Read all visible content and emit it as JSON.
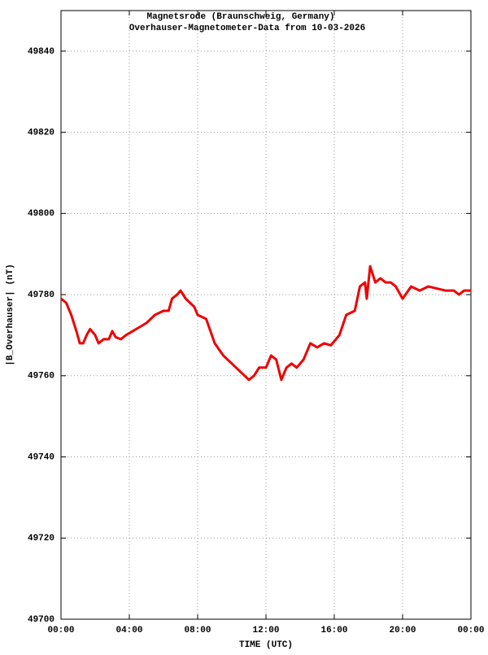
{
  "chart_data": {
    "type": "line",
    "title": "Magnetsrode (Braunschweig, Germany)",
    "subtitle": "Overhauser-Magnetometer-Data from 10-03-2026",
    "xlabel": "TIME (UTC)",
    "ylabel": "|B_Overhauser| (nT)",
    "color": "#ee0000",
    "grid": true,
    "xlim": [
      0,
      24
    ],
    "xticks": [
      {
        "value": 0,
        "label": "00:00"
      },
      {
        "value": 4,
        "label": "04:00"
      },
      {
        "value": 8,
        "label": "08:00"
      },
      {
        "value": 12,
        "label": "12:00"
      },
      {
        "value": 16,
        "label": "16:00"
      },
      {
        "value": 20,
        "label": "20:00"
      },
      {
        "value": 24,
        "label": "00:00"
      }
    ],
    "ylim": [
      49700,
      49850
    ],
    "yticks": [
      49700,
      49720,
      49740,
      49760,
      49780,
      49800,
      49820,
      49840
    ],
    "x": [
      0,
      0.3,
      0.6,
      0.9,
      1.1,
      1.3,
      1.5,
      1.7,
      2.0,
      2.2,
      2.5,
      2.8,
      3.0,
      3.2,
      3.5,
      3.8,
      4.2,
      4.6,
      5.0,
      5.5,
      6.0,
      6.3,
      6.5,
      6.8,
      7.0,
      7.3,
      7.8,
      8.0,
      8.5,
      9.0,
      9.5,
      10.0,
      10.5,
      11.0,
      11.3,
      11.6,
      12.0,
      12.3,
      12.6,
      12.9,
      13.2,
      13.5,
      13.8,
      14.2,
      14.6,
      15.0,
      15.4,
      15.8,
      16.3,
      16.7,
      17.2,
      17.5,
      17.8,
      17.9,
      18.1,
      18.4,
      18.7,
      19.0,
      19.3,
      19.6,
      20.0,
      20.5,
      21.0,
      21.5,
      22.0,
      22.5,
      23.0,
      23.3,
      23.6,
      24.0
    ],
    "values": [
      49779,
      49778,
      49775,
      49771,
      49768,
      49768,
      49770,
      49771.5,
      49770,
      49768,
      49769,
      49769,
      49771,
      49769.5,
      49769,
      49770,
      49771,
      49772,
      49773,
      49775,
      49776,
      49776,
      49779,
      49780,
      49781,
      49779,
      49777,
      49775,
      49774,
      49768,
      49765,
      49763,
      49761,
      49759,
      49760,
      49762,
      49762,
      49765,
      49764,
      49759,
      49762,
      49763,
      49762,
      49764,
      49768,
      49767,
      49768,
      49767.5,
      49770,
      49775,
      49776,
      49782,
      49783,
      49779,
      49787,
      49783,
      49784,
      49783,
      49783,
      49782,
      49779,
      49782,
      49781,
      49782,
      49781.5,
      49781,
      49781,
      49780,
      49781,
      49781
    ]
  }
}
